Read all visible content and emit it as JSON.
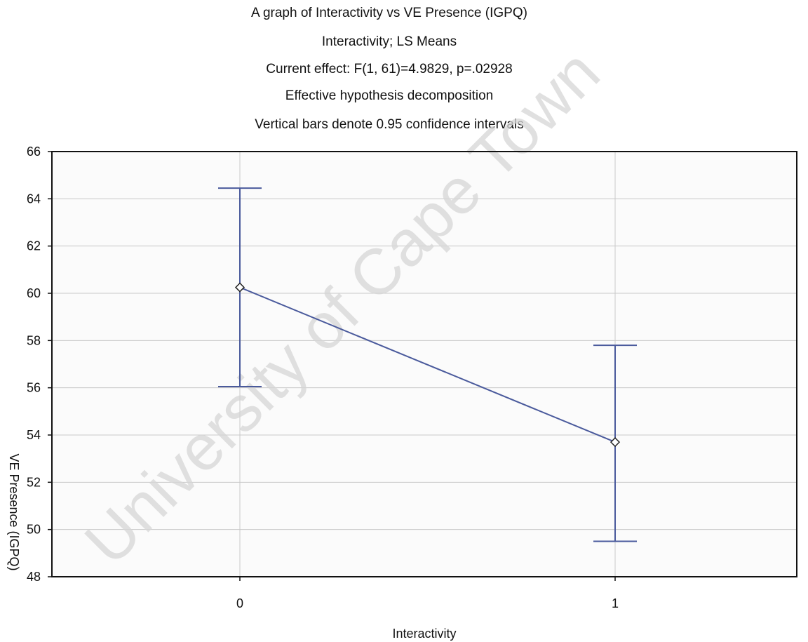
{
  "titles": [
    "A graph of Interactivity vs VE Presence (IGPQ)",
    "Interactivity; LS Means",
    "Current effect: F(1, 61)=4.9829, p=.02928",
    "Effective hypothesis decomposition",
    "Vertical bars denote 0.95 confidence intervals"
  ],
  "watermark": "University of Cape Town",
  "chart_data": {
    "type": "line",
    "categories": [
      "0",
      "1"
    ],
    "series": [
      {
        "values": [
          60.25,
          53.7
        ],
        "ci_upper": [
          64.45,
          57.8
        ],
        "ci_lower": [
          56.05,
          49.5
        ]
      }
    ],
    "xlabel": "Interactivity",
    "ylabel": "VE Presence (IGPQ)",
    "ylim": [
      48,
      66
    ],
    "yticks": [
      48,
      50,
      52,
      54,
      56,
      58,
      60,
      62,
      64,
      66
    ],
    "grid": true,
    "colors": {
      "series": "#4a5a9c",
      "grid": "#c8c8c8",
      "plot_bg": "#fbfbfb",
      "marker_fill": "#ffffff"
    }
  }
}
